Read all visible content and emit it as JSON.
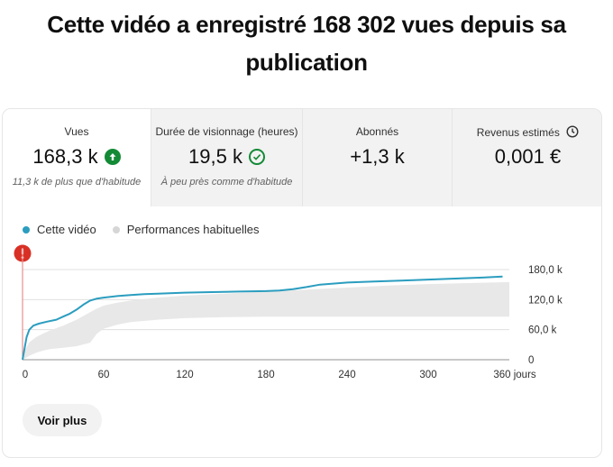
{
  "headline": "Cette vidéo a enregistré 168 302 vues depuis sa publication",
  "metrics": [
    {
      "label": "Vues",
      "value": "168,3 k",
      "note": "11,3 k de plus que d'habitude",
      "icon": "arrow-up-circle-icon"
    },
    {
      "label": "Durée de visionnage (heures)",
      "value": "19,5 k",
      "note": "À peu près comme d'habitude",
      "icon": "check-circle-icon"
    },
    {
      "label": "Abonnés",
      "value": "+1,3 k",
      "note": ""
    },
    {
      "label": "Revenus estimés",
      "value": "0,001 €",
      "note": "",
      "icon": "clock-icon"
    }
  ],
  "legend": {
    "this_video": "Cette vidéo",
    "typical": "Performances habituelles"
  },
  "colors": {
    "this_video": "#2b9dbf",
    "typical_band": "#e8e8e8",
    "positive": "#138a36",
    "alert": "#d93025",
    "marker_line": "#e89090"
  },
  "chart_data": {
    "type": "line",
    "x_tick_labels": [
      "0",
      "60",
      "120",
      "180",
      "240",
      "300",
      "360 jours"
    ],
    "y_tick_labels": [
      "0",
      "60,0 k",
      "120,0 k",
      "180,0 k"
    ],
    "xlim": [
      0,
      360
    ],
    "ylim": [
      0,
      180000
    ],
    "series": [
      {
        "name": "Cette vidéo",
        "x": [
          0,
          1,
          2,
          3,
          5,
          8,
          12,
          18,
          25,
          30,
          35,
          40,
          45,
          50,
          55,
          60,
          70,
          80,
          90,
          100,
          120,
          140,
          160,
          180,
          190,
          200,
          210,
          220,
          240,
          260,
          280,
          300,
          320,
          340,
          355
        ],
        "y": [
          0,
          15000,
          30000,
          45000,
          60000,
          68000,
          72000,
          76000,
          80000,
          86000,
          92000,
          100000,
          110000,
          118000,
          122000,
          124000,
          127000,
          129000,
          131000,
          132000,
          134000,
          135000,
          136000,
          137000,
          138000,
          141000,
          145000,
          150000,
          154000,
          156000,
          158000,
          160000,
          162000,
          164000,
          166000
        ]
      }
    ],
    "typical_band": {
      "x": [
        0,
        2,
        5,
        10,
        15,
        20,
        30,
        40,
        50,
        55,
        60,
        70,
        80,
        100,
        120,
        150,
        180,
        210,
        240,
        270,
        300,
        330,
        360
      ],
      "lower": [
        0,
        3000,
        8000,
        14000,
        18000,
        21000,
        24000,
        27000,
        34000,
        52000,
        62000,
        70000,
        75000,
        80000,
        83000,
        85000,
        86000,
        86000,
        86000,
        86000,
        86000,
        86000,
        86000
      ],
      "upper": [
        0,
        20000,
        35000,
        45000,
        52000,
        58000,
        68000,
        80000,
        95000,
        102000,
        108000,
        114000,
        118000,
        124000,
        128000,
        132000,
        136000,
        140000,
        144000,
        148000,
        151000,
        153000,
        155000
      ]
    },
    "grid": true,
    "legend_position": "top-left"
  },
  "actions": {
    "see_more": "Voir plus"
  }
}
